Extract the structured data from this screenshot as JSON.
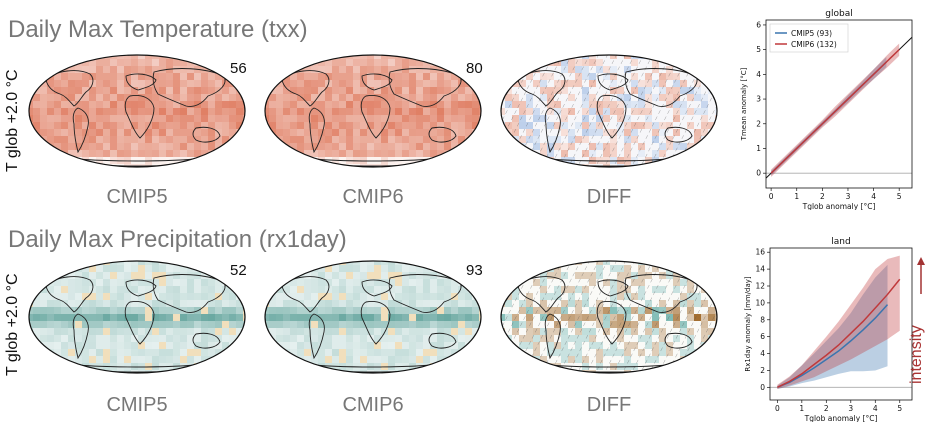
{
  "rows": [
    {
      "title": "Daily Max Temperature (txx)",
      "row_label": "T glob +2.0 °C",
      "maps": [
        {
          "label": "CMIP5",
          "count": "56",
          "palette": "temp"
        },
        {
          "label": "CMIP6",
          "count": "80",
          "palette": "temp"
        },
        {
          "label": "DIFF",
          "count": "",
          "palette": "diff_temp"
        }
      ]
    },
    {
      "title": "Daily Max Precipitation (rx1day)",
      "row_label": "T glob +2.0 °C",
      "maps": [
        {
          "label": "CMIP5",
          "count": "52",
          "palette": "precip"
        },
        {
          "label": "CMIP6",
          "count": "93",
          "palette": "precip"
        },
        {
          "label": "DIFF",
          "count": "",
          "palette": "diff_precip"
        }
      ]
    }
  ],
  "side_label": "intensity",
  "colors": {
    "cmip5": "#3b75af",
    "cmip6": "#c0393b",
    "accent_arrow": "#a33333"
  },
  "chart_data": [
    {
      "type": "line",
      "title": "global",
      "xlabel": "Tglob anomaly [°C]",
      "ylabel": "Tmean anomaly [°C]",
      "xlim": [
        -0.2,
        5.5
      ],
      "ylim": [
        -0.6,
        6.2
      ],
      "xticks": [
        0,
        1,
        2,
        3,
        4,
        5
      ],
      "yticks": [
        0,
        1,
        2,
        3,
        4,
        5,
        6
      ],
      "legend": "top-left",
      "series": [
        {
          "name": "CMIP5 (93)",
          "color": "#3b75af",
          "x": [
            0,
            0.5,
            1,
            1.5,
            2,
            2.5,
            3,
            3.5,
            4,
            4.5
          ],
          "y": [
            0,
            0.5,
            1,
            1.5,
            2,
            2.5,
            3,
            3.5,
            4,
            4.5
          ],
          "lo": [
            -0.1,
            0.4,
            0.9,
            1.4,
            1.9,
            2.4,
            2.85,
            3.35,
            3.8,
            4.3
          ],
          "hi": [
            0.1,
            0.6,
            1.1,
            1.6,
            2.1,
            2.6,
            3.15,
            3.65,
            4.2,
            4.7
          ]
        },
        {
          "name": "CMIP6 (132)",
          "color": "#c0393b",
          "x": [
            0,
            0.5,
            1,
            1.5,
            2,
            2.5,
            3,
            3.5,
            4,
            4.5,
            5
          ],
          "y": [
            0,
            0.5,
            1,
            1.5,
            2,
            2.5,
            3,
            3.5,
            4,
            4.5,
            5
          ],
          "lo": [
            -0.15,
            0.35,
            0.85,
            1.35,
            1.85,
            2.3,
            2.8,
            3.3,
            3.8,
            4.25,
            4.75
          ],
          "hi": [
            0.15,
            0.65,
            1.15,
            1.65,
            2.15,
            2.7,
            3.2,
            3.7,
            4.2,
            4.75,
            5.25
          ]
        }
      ],
      "reference_line": {
        "x": [
          -0.2,
          5.5
        ],
        "y": [
          -0.2,
          5.5
        ]
      }
    },
    {
      "type": "line",
      "title": "land",
      "xlabel": "Tglob anomaly [°C]",
      "ylabel": "Rx1day anomaly [mm/day]",
      "xlim": [
        -0.3,
        5.5
      ],
      "ylim": [
        -1.5,
        16.5
      ],
      "xticks": [
        0,
        1,
        2,
        3,
        4,
        5
      ],
      "yticks": [
        0,
        2,
        4,
        6,
        8,
        10,
        12,
        14,
        16
      ],
      "series": [
        {
          "name": "CMIP5",
          "color": "#3b75af",
          "x": [
            0,
            0.5,
            1,
            1.5,
            2,
            2.5,
            3,
            3.5,
            4,
            4.5
          ],
          "y": [
            0,
            0.6,
            1.4,
            2.3,
            3.3,
            4.3,
            5.5,
            6.8,
            8.2,
            9.8
          ],
          "lo": [
            -0.2,
            0.1,
            0.5,
            0.8,
            1.2,
            1.6,
            1.9,
            1.9,
            2.0,
            2.5
          ],
          "hi": [
            0.2,
            1.2,
            2.6,
            4.0,
            5.5,
            7.0,
            8.8,
            11.0,
            13.0,
            14.5
          ]
        },
        {
          "name": "CMIP6",
          "color": "#c0393b",
          "x": [
            0,
            0.5,
            1,
            1.5,
            2,
            2.5,
            3,
            3.5,
            4,
            4.5,
            5
          ],
          "y": [
            0,
            0.7,
            1.6,
            2.7,
            3.8,
            5.0,
            6.4,
            7.8,
            9.4,
            11.0,
            12.8
          ],
          "lo": [
            -0.2,
            0.2,
            0.7,
            1.2,
            1.9,
            2.6,
            3.3,
            4.1,
            4.9,
            5.7,
            6.7
          ],
          "hi": [
            0.3,
            1.3,
            2.6,
            4.3,
            6.0,
            7.8,
            9.8,
            11.8,
            14.0,
            15.2,
            15.6
          ]
        }
      ]
    }
  ]
}
